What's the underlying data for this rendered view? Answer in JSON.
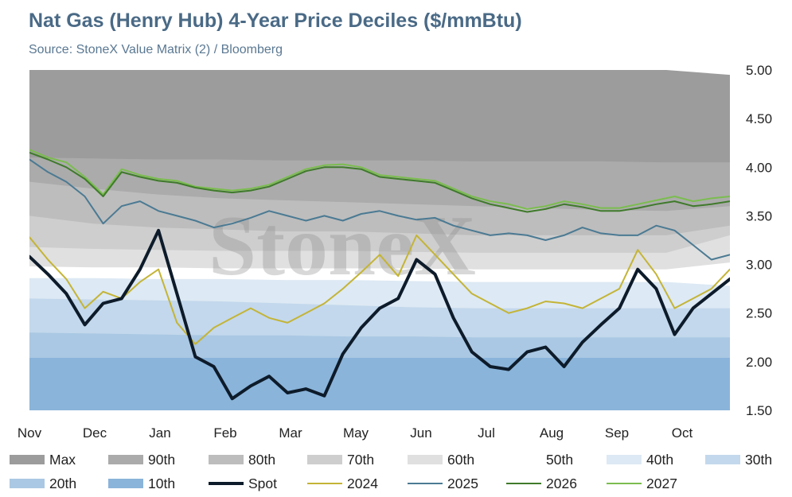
{
  "header": {
    "title": "Nat Gas (Henry Hub) 4-Year Price Deciles ($/mmBtu)",
    "subtitle": "Source: StoneX Value Matrix (2) / Bloomberg"
  },
  "watermark": "StoneX",
  "chart_data": {
    "type": "area",
    "title": "Nat Gas (Henry Hub) 4-Year Price Deciles ($/mmBtu)",
    "subtitle": "Source: StoneX Value Matrix (2) / Bloomberg",
    "x_tick_labels": [
      "Nov",
      "Dec",
      "Jan",
      "Feb",
      "Mar",
      "May",
      "Jun",
      "Jul",
      "Aug",
      "Sep",
      "Oct"
    ],
    "y_tick_labels": [
      "5.00",
      "4.50",
      "4.00",
      "3.50",
      "3.00",
      "2.50",
      "2.00",
      "1.50"
    ],
    "ylim": [
      1.5,
      5.0
    ],
    "y_axis_position": "right",
    "grid": false,
    "legend_position": "bottom",
    "legend": [
      {
        "label": "Max",
        "kind": "area",
        "color": "#9c9c9c"
      },
      {
        "label": "90th",
        "kind": "area",
        "color": "#ababab"
      },
      {
        "label": "80th",
        "kind": "area",
        "color": "#bdbdbd"
      },
      {
        "label": "70th",
        "kind": "area",
        "color": "#cecece"
      },
      {
        "label": "60th",
        "kind": "area",
        "color": "#e0e0e0"
      },
      {
        "label": "50th",
        "kind": "area",
        "color": "#ffffff"
      },
      {
        "label": "40th",
        "kind": "area",
        "color": "#dde9f4"
      },
      {
        "label": "30th",
        "kind": "area",
        "color": "#c3d8ec"
      },
      {
        "label": "20th",
        "kind": "area",
        "color": "#aac8e3"
      },
      {
        "label": "10th",
        "kind": "area",
        "color": "#8ab4da"
      },
      {
        "label": "Spot",
        "kind": "line",
        "color": "#0d1b2a",
        "width": 4
      },
      {
        "label": "2024",
        "kind": "line",
        "color": "#c4b436",
        "width": 2
      },
      {
        "label": "2025",
        "kind": "line",
        "color": "#4b7a93",
        "width": 2
      },
      {
        "label": "2026",
        "kind": "line",
        "color": "#3f7a2b",
        "width": 2
      },
      {
        "label": "2027",
        "kind": "line",
        "color": "#7bbd4f",
        "width": 2
      }
    ],
    "bands": [
      {
        "name": "Max",
        "color": "#9c9c9c",
        "values": [
          5.0,
          5.0,
          5.0,
          5.0,
          5.0,
          5.0,
          5.0,
          5.0,
          5.0,
          5.0,
          5.0,
          4.95
        ]
      },
      {
        "name": "90th",
        "color": "#ababab",
        "values": [
          4.1,
          4.09,
          4.08,
          4.08,
          4.07,
          4.07,
          4.07,
          4.06,
          4.06,
          4.06,
          4.05,
          4.05
        ]
      },
      {
        "name": "80th",
        "color": "#bdbdbd",
        "values": [
          3.85,
          3.78,
          3.72,
          3.68,
          3.66,
          3.64,
          3.62,
          3.6,
          3.58,
          3.56,
          3.55,
          3.6
        ]
      },
      {
        "name": "70th",
        "color": "#cecece",
        "values": [
          3.5,
          3.42,
          3.38,
          3.36,
          3.34,
          3.34,
          3.32,
          3.3,
          3.3,
          3.3,
          3.3,
          3.4
        ]
      },
      {
        "name": "60th",
        "color": "#e0e0e0",
        "values": [
          3.18,
          3.16,
          3.15,
          3.14,
          3.14,
          3.14,
          3.13,
          3.12,
          3.12,
          3.12,
          3.12,
          3.3
        ]
      },
      {
        "name": "50th",
        "color": "#ffffff",
        "values": [
          2.98,
          2.97,
          2.97,
          2.96,
          2.96,
          2.96,
          2.96,
          2.95,
          2.95,
          2.95,
          2.95,
          3.02
        ]
      },
      {
        "name": "40th",
        "color": "#dde9f4",
        "values": [
          2.86,
          2.86,
          2.85,
          2.85,
          2.84,
          2.84,
          2.83,
          2.82,
          2.82,
          2.82,
          2.82,
          2.78
        ]
      },
      {
        "name": "30th",
        "color": "#c3d8ec",
        "values": [
          2.65,
          2.64,
          2.63,
          2.62,
          2.6,
          2.58,
          2.56,
          2.55,
          2.55,
          2.55,
          2.55,
          2.55
        ]
      },
      {
        "name": "20th",
        "color": "#aac8e3",
        "values": [
          2.3,
          2.29,
          2.28,
          2.27,
          2.27,
          2.26,
          2.26,
          2.25,
          2.25,
          2.25,
          2.25,
          2.25
        ]
      },
      {
        "name": "10th",
        "color": "#8ab4da",
        "values": [
          2.04,
          2.04,
          2.04,
          2.04,
          2.04,
          2.04,
          2.04,
          2.04,
          2.04,
          2.04,
          2.04,
          2.04
        ]
      }
    ],
    "series": [
      {
        "name": "2027",
        "color": "#7bbd4f",
        "width": 2,
        "values": [
          4.18,
          4.1,
          4.05,
          3.9,
          3.72,
          3.98,
          3.92,
          3.88,
          3.86,
          3.8,
          3.78,
          3.76,
          3.78,
          3.82,
          3.9,
          3.98,
          4.02,
          4.03,
          4.0,
          3.92,
          3.9,
          3.88,
          3.86,
          3.78,
          3.7,
          3.65,
          3.62,
          3.57,
          3.6,
          3.65,
          3.62,
          3.58,
          3.58,
          3.62,
          3.66,
          3.7,
          3.65,
          3.68,
          3.7
        ]
      },
      {
        "name": "2026",
        "color": "#3f7a2b",
        "width": 2,
        "values": [
          4.15,
          4.08,
          4.0,
          3.88,
          3.7,
          3.95,
          3.9,
          3.86,
          3.84,
          3.79,
          3.76,
          3.74,
          3.76,
          3.8,
          3.88,
          3.96,
          4.0,
          4.0,
          3.98,
          3.9,
          3.88,
          3.86,
          3.84,
          3.76,
          3.68,
          3.62,
          3.58,
          3.54,
          3.57,
          3.62,
          3.59,
          3.55,
          3.55,
          3.58,
          3.62,
          3.65,
          3.6,
          3.62,
          3.65
        ]
      },
      {
        "name": "2025",
        "color": "#4b7a93",
        "width": 2,
        "values": [
          4.08,
          3.95,
          3.85,
          3.7,
          3.42,
          3.6,
          3.65,
          3.55,
          3.5,
          3.45,
          3.38,
          3.42,
          3.48,
          3.55,
          3.5,
          3.45,
          3.5,
          3.45,
          3.52,
          3.55,
          3.5,
          3.46,
          3.48,
          3.4,
          3.35,
          3.3,
          3.32,
          3.3,
          3.25,
          3.3,
          3.38,
          3.32,
          3.3,
          3.3,
          3.4,
          3.35,
          3.2,
          3.05,
          3.1
        ]
      },
      {
        "name": "2024",
        "color": "#c4b436",
        "width": 2,
        "values": [
          3.28,
          3.05,
          2.85,
          2.55,
          2.72,
          2.65,
          2.82,
          2.95,
          2.4,
          2.18,
          2.35,
          2.45,
          2.55,
          2.45,
          2.4,
          2.5,
          2.6,
          2.75,
          2.92,
          3.1,
          2.88,
          3.3,
          3.1,
          2.9,
          2.7,
          2.6,
          2.5,
          2.55,
          2.62,
          2.6,
          2.55,
          2.65,
          2.75,
          3.15,
          2.9,
          2.55,
          2.65,
          2.75,
          2.95
        ]
      },
      {
        "name": "Spot",
        "color": "#0d1b2a",
        "width": 4,
        "values": [
          3.08,
          2.9,
          2.7,
          2.38,
          2.6,
          2.65,
          2.95,
          3.35,
          2.7,
          2.05,
          1.95,
          1.62,
          1.75,
          1.85,
          1.68,
          1.72,
          1.65,
          2.08,
          2.35,
          2.55,
          2.65,
          3.05,
          2.9,
          2.45,
          2.1,
          1.95,
          1.92,
          2.1,
          2.15,
          1.95,
          2.2,
          2.38,
          2.55,
          2.95,
          2.75,
          2.28,
          2.55,
          2.7,
          2.85
        ]
      }
    ]
  }
}
